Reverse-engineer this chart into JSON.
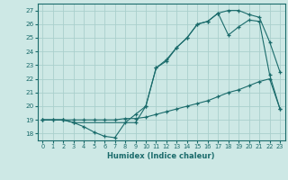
{
  "xlabel": "Humidex (Indice chaleur)",
  "bg_color": "#cde8e5",
  "grid_color": "#aacfcc",
  "line_color": "#1a6b6b",
  "xlim": [
    -0.5,
    23.5
  ],
  "ylim": [
    17.5,
    27.5
  ],
  "xticks": [
    0,
    1,
    2,
    3,
    4,
    5,
    6,
    7,
    8,
    9,
    10,
    11,
    12,
    13,
    14,
    15,
    16,
    17,
    18,
    19,
    20,
    21,
    22,
    23
  ],
  "yticks": [
    18,
    19,
    20,
    21,
    22,
    23,
    24,
    25,
    26,
    27
  ],
  "line1_x": [
    0,
    1,
    2,
    3,
    4,
    5,
    6,
    7,
    8,
    9,
    10,
    11,
    12,
    13,
    14,
    15,
    16,
    17,
    18,
    19,
    20,
    21,
    22,
    23
  ],
  "line1_y": [
    19,
    19,
    19,
    18.8,
    18.5,
    18.1,
    17.8,
    17.7,
    18.8,
    19.4,
    20.0,
    22.8,
    23.3,
    24.3,
    25.0,
    26.0,
    26.2,
    26.8,
    27.0,
    27.0,
    26.7,
    26.5,
    24.7,
    22.5
  ],
  "line2_x": [
    0,
    1,
    2,
    3,
    4,
    5,
    6,
    7,
    8,
    9,
    10,
    11,
    12,
    13,
    14,
    15,
    16,
    17,
    18,
    19,
    20,
    21,
    22,
    23
  ],
  "line2_y": [
    19,
    19,
    19,
    19,
    19,
    19,
    19,
    19,
    19.1,
    19.1,
    19.2,
    19.4,
    19.6,
    19.8,
    20.0,
    20.2,
    20.4,
    20.7,
    21.0,
    21.2,
    21.5,
    21.8,
    22.0,
    19.8
  ],
  "line3_x": [
    0,
    2,
    3,
    9,
    10,
    11,
    12,
    13,
    14,
    15,
    16,
    17,
    18,
    19,
    20,
    21,
    22,
    23
  ],
  "line3_y": [
    19,
    19,
    18.8,
    18.8,
    20.0,
    22.8,
    23.4,
    24.3,
    25.0,
    26.0,
    26.2,
    26.8,
    25.2,
    25.8,
    26.3,
    26.2,
    22.3,
    19.8
  ]
}
